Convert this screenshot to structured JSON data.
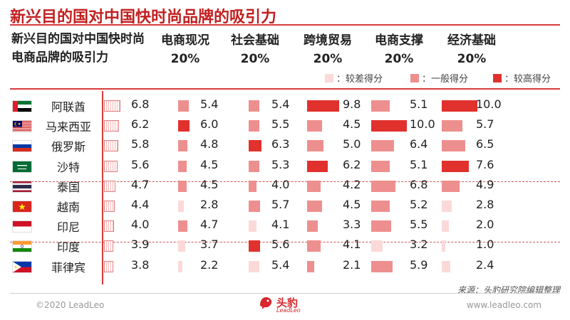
{
  "title": "新兴目的国对中国快时尚品牌的吸引力",
  "corner_label": "新兴目的国对中国快时尚电商品牌的吸引力",
  "columns": [
    {
      "name": "电商现况",
      "weight": "20%"
    },
    {
      "name": "社会基础",
      "weight": "20%"
    },
    {
      "name": "跨境贸易",
      "weight": "20%"
    },
    {
      "name": "电商支撑",
      "weight": "20%"
    },
    {
      "name": "经济基础",
      "weight": "20%"
    }
  ],
  "legend": [
    {
      "label": "：较差得分",
      "level": "low"
    },
    {
      "label": "：一般得分",
      "level": "mid"
    },
    {
      "label": "：较高得分",
      "level": "high"
    }
  ],
  "colors": {
    "low": "#fbd9d9",
    "mid": "#ee8f8f",
    "high": "#e0312d",
    "accent": "#d83a3a",
    "title": "#c21f1f"
  },
  "chart_data": {
    "type": "table",
    "score_max": 10,
    "columns": [
      "新兴目的国对中国快时尚电商品牌的吸引力",
      "电商现况",
      "社会基础",
      "跨境贸易",
      "电商支撑",
      "经济基础"
    ],
    "rows": [
      {
        "country": "阿联酋",
        "flag": "uae",
        "overall": "6.8",
        "scores": [
          "5.4",
          "5.4",
          "9.8",
          "5.1",
          "10.0"
        ],
        "levels": [
          "mid",
          "mid",
          "high",
          "mid",
          "high"
        ]
      },
      {
        "country": "马来西亚",
        "flag": "malaysia",
        "overall": "6.2",
        "scores": [
          "6.0",
          "5.5",
          "4.5",
          "10.0",
          "5.7"
        ],
        "levels": [
          "high",
          "mid",
          "mid",
          "high",
          "mid"
        ]
      },
      {
        "country": "俄罗斯",
        "flag": "russia",
        "overall": "5.8",
        "scores": [
          "4.8",
          "6.3",
          "5.0",
          "6.4",
          "6.5"
        ],
        "levels": [
          "mid",
          "high",
          "mid",
          "mid",
          "mid"
        ]
      },
      {
        "country": "沙特",
        "flag": "saudi",
        "overall": "5.6",
        "scores": [
          "4.5",
          "5.3",
          "6.2",
          "5.1",
          "7.6"
        ],
        "levels": [
          "mid",
          "mid",
          "high",
          "mid",
          "high"
        ]
      },
      {
        "country": "泰国",
        "flag": "thailand",
        "overall": "4.7",
        "scores": [
          "4.5",
          "4.0",
          "4.2",
          "6.8",
          "4.9"
        ],
        "levels": [
          "mid",
          "mid",
          "mid",
          "mid",
          "mid"
        ]
      },
      {
        "country": "越南",
        "flag": "vietnam",
        "overall": "4.4",
        "scores": [
          "2.8",
          "5.7",
          "4.5",
          "5.2",
          "2.8"
        ],
        "levels": [
          "low",
          "mid",
          "mid",
          "mid",
          "low"
        ]
      },
      {
        "country": "印尼",
        "flag": "indonesia",
        "overall": "4.0",
        "scores": [
          "4.7",
          "4.1",
          "3.3",
          "5.5",
          "2.0"
        ],
        "levels": [
          "mid",
          "low",
          "mid",
          "mid",
          "low"
        ]
      },
      {
        "country": "印度",
        "flag": "india",
        "overall": "3.9",
        "scores": [
          "3.7",
          "5.6",
          "4.1",
          "3.2",
          "1.0"
        ],
        "levels": [
          "low",
          "high",
          "mid",
          "low",
          "low"
        ]
      },
      {
        "country": "菲律宾",
        "flag": "philippines",
        "overall": "3.8",
        "scores": [
          "2.2",
          "5.4",
          "2.1",
          "5.9",
          "2.4"
        ],
        "levels": [
          "low",
          "low",
          "mid",
          "mid",
          "low"
        ]
      }
    ]
  },
  "source": "来源：头豹研究院编辑整理",
  "copyright": "©2020 LeadLeo",
  "website": "www.leadleo.com",
  "logo": {
    "text": "头豹",
    "sub": "LeadLeo"
  }
}
